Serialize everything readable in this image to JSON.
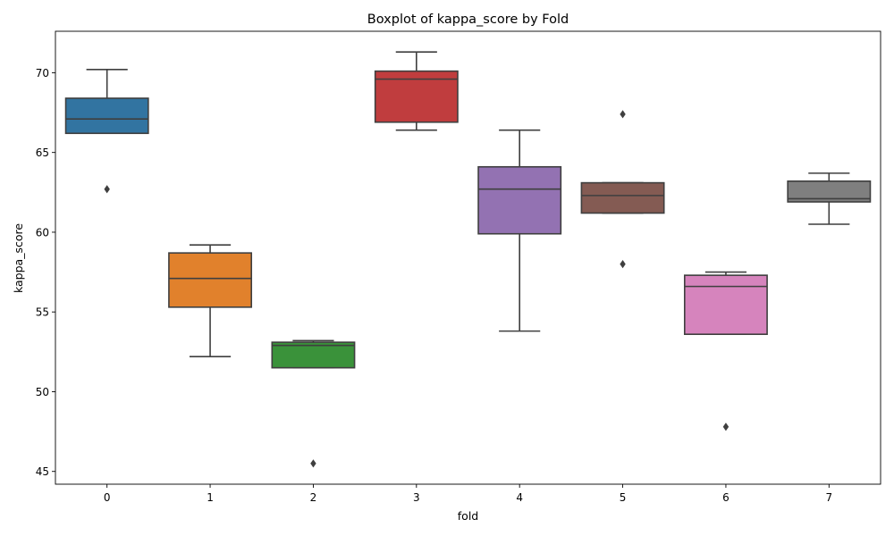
{
  "chart_data": {
    "type": "boxplot",
    "title": "Boxplot of kappa_score by Fold",
    "xlabel": "fold",
    "ylabel": "kappa_score",
    "ylim": [
      44.2,
      72.6
    ],
    "yticks": [
      45,
      50,
      55,
      60,
      65,
      70
    ],
    "grid": false,
    "categories": [
      "0",
      "1",
      "2",
      "3",
      "4",
      "5",
      "6",
      "7"
    ],
    "boxes": [
      {
        "category": "0",
        "color": "#3274a1",
        "whisker_low": 66.2,
        "q1": 66.2,
        "median": 67.1,
        "q3": 68.4,
        "whisker_high": 70.2,
        "outliers": [
          62.7
        ]
      },
      {
        "category": "1",
        "color": "#e1812c",
        "whisker_low": 52.2,
        "q1": 55.3,
        "median": 57.1,
        "q3": 58.7,
        "whisker_high": 59.2,
        "outliers": []
      },
      {
        "category": "2",
        "color": "#3a923a",
        "whisker_low": 51.5,
        "q1": 51.5,
        "median": 52.9,
        "q3": 53.1,
        "whisker_high": 53.2,
        "outliers": [
          45.5
        ]
      },
      {
        "category": "3",
        "color": "#c03d3e",
        "whisker_low": 66.4,
        "q1": 66.9,
        "median": 69.6,
        "q3": 70.1,
        "whisker_high": 71.3,
        "outliers": []
      },
      {
        "category": "4",
        "color": "#9372b2",
        "whisker_low": 53.8,
        "q1": 59.9,
        "median": 62.7,
        "q3": 64.1,
        "whisker_high": 66.4,
        "outliers": []
      },
      {
        "category": "5",
        "color": "#845b53",
        "whisker_low": 61.2,
        "q1": 61.2,
        "median": 62.3,
        "q3": 63.1,
        "whisker_high": 63.1,
        "outliers": [
          67.4,
          58.0
        ]
      },
      {
        "category": "6",
        "color": "#d684bd",
        "whisker_low": 53.6,
        "q1": 53.6,
        "median": 56.6,
        "q3": 57.3,
        "whisker_high": 57.5,
        "outliers": [
          47.8
        ]
      },
      {
        "category": "7",
        "color": "#7f7f7f",
        "whisker_low": 60.5,
        "q1": 61.9,
        "median": 62.1,
        "q3": 63.2,
        "whisker_high": 63.7,
        "outliers": []
      }
    ]
  }
}
